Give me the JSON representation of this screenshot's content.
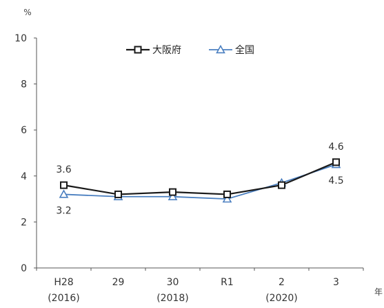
{
  "chart_data": {
    "type": "line",
    "y_unit": "%",
    "x_unit": "年",
    "categories": [
      {
        "line1": "H28",
        "line2": "(2016)"
      },
      {
        "line1": "29",
        "line2": ""
      },
      {
        "line1": "30",
        "line2": "(2018)"
      },
      {
        "line1": "R1",
        "line2": ""
      },
      {
        "line1": "2",
        "line2": "(2020)"
      },
      {
        "line1": "3",
        "line2": ""
      }
    ],
    "ylim": [
      0,
      10
    ],
    "yticks": [
      "0",
      "2",
      "4",
      "6",
      "8",
      "10"
    ],
    "series": [
      {
        "name": "大阪府",
        "values": [
          3.6,
          3.2,
          3.3,
          3.2,
          3.6,
          4.6
        ],
        "color": "#1a1a1a",
        "marker": "square"
      },
      {
        "name": "全国",
        "values": [
          3.2,
          3.1,
          3.1,
          3.0,
          3.7,
          4.5
        ],
        "color": "#4a7fc0",
        "marker": "triangle"
      }
    ],
    "data_labels": [
      {
        "series": 0,
        "index": 0,
        "text": "3.6",
        "position": "above"
      },
      {
        "series": 1,
        "index": 0,
        "text": "3.2",
        "position": "below"
      },
      {
        "series": 0,
        "index": 5,
        "text": "4.6",
        "position": "above"
      },
      {
        "series": 1,
        "index": 5,
        "text": "4.5",
        "position": "below"
      }
    ],
    "legend_position": "top-center",
    "grid": false
  }
}
